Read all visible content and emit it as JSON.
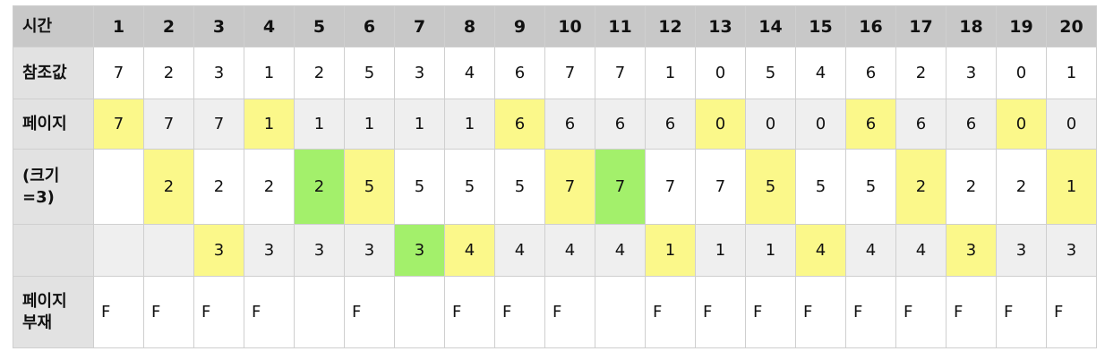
{
  "header": {
    "label": "시간",
    "times": [
      "1",
      "2",
      "3",
      "4",
      "5",
      "6",
      "7",
      "8",
      "9",
      "10",
      "11",
      "12",
      "13",
      "14",
      "15",
      "16",
      "17",
      "18",
      "19",
      "20"
    ]
  },
  "reference": {
    "label": "참조값",
    "values": [
      "7",
      "2",
      "3",
      "1",
      "2",
      "5",
      "3",
      "4",
      "6",
      "7",
      "7",
      "1",
      "0",
      "5",
      "4",
      "6",
      "2",
      "3",
      "0",
      "1"
    ]
  },
  "frames": {
    "label_line1": "페이지",
    "label_line2a": "(크기",
    "label_line2b": "=3)",
    "rows": [
      [
        "7",
        "7",
        "7",
        "1",
        "1",
        "1",
        "1",
        "1",
        "6",
        "6",
        "6",
        "6",
        "0",
        "0",
        "0",
        "6",
        "6",
        "6",
        "0",
        "0"
      ],
      [
        "",
        "2",
        "2",
        "2",
        "2",
        "5",
        "5",
        "5",
        "5",
        "7",
        "7",
        "7",
        "7",
        "5",
        "5",
        "5",
        "2",
        "2",
        "2",
        "1"
      ],
      [
        "",
        "",
        "3",
        "3",
        "3",
        "3",
        "3",
        "4",
        "4",
        "4",
        "4",
        "1",
        "1",
        "1",
        "4",
        "4",
        "4",
        "3",
        "3",
        "3"
      ]
    ],
    "highlights": [
      [
        "yellow",
        "",
        "",
        "yellow",
        "",
        "",
        "",
        "",
        "yellow",
        "",
        "",
        "",
        "yellow",
        "",
        "",
        "yellow",
        "",
        "",
        "yellow",
        ""
      ],
      [
        "",
        "yellow",
        "",
        "",
        "green",
        "yellow",
        "",
        "",
        "",
        "yellow",
        "green",
        "",
        "",
        "yellow",
        "",
        "",
        "yellow",
        "",
        "",
        "yellow"
      ],
      [
        "",
        "",
        "yellow",
        "",
        "",
        "",
        "green",
        "yellow",
        "",
        "",
        "",
        "yellow",
        "",
        "",
        "yellow",
        "",
        "",
        "yellow",
        "",
        ""
      ]
    ],
    "colors": {
      "yellow": "#fbf88a",
      "green": "#a3f06b",
      "header": "#c8c8c8"
    }
  },
  "page_fault": {
    "label_line1": "페이지",
    "label_line2": "부재",
    "values": [
      "F",
      "F",
      "F",
      "F",
      "",
      "F",
      "",
      "F",
      "F",
      "F",
      "",
      "F",
      "F",
      "F",
      "F",
      "F",
      "F",
      "F",
      "F",
      "F"
    ]
  }
}
